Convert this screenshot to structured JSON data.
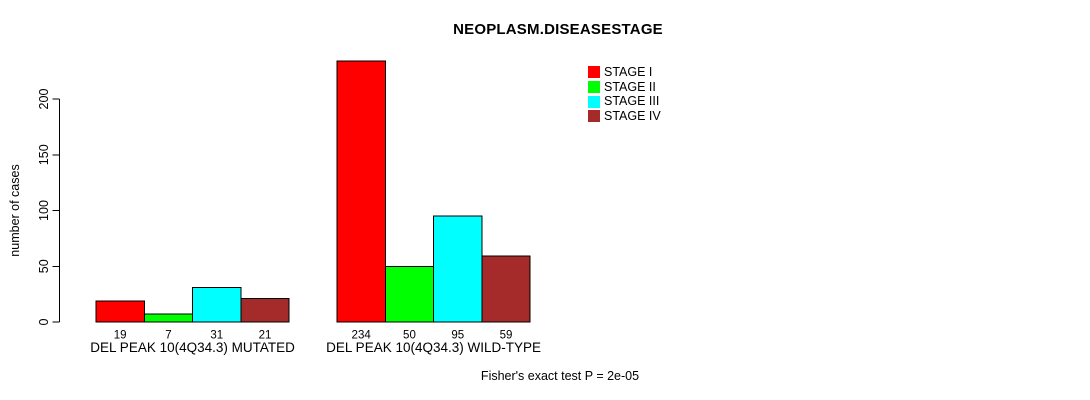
{
  "chart_data": {
    "type": "bar",
    "title": "NEOPLASM.DISEASESTAGE",
    "xlabel": "",
    "ylabel": "number of cases",
    "ylim": [
      0,
      200
    ],
    "yticks": [
      0,
      50,
      100,
      150,
      200
    ],
    "grid": false,
    "legend_position": "top-right",
    "bar_value_labels_shown": true,
    "categories": [
      "DEL PEAK 10(4Q34.3) MUTATED",
      "DEL PEAK 10(4Q34.3) WILD-TYPE"
    ],
    "series": [
      {
        "name": "STAGE I",
        "color": "#ff0000",
        "values": [
          19,
          234
        ]
      },
      {
        "name": "STAGE II",
        "color": "#00ff00",
        "values": [
          7,
          50
        ]
      },
      {
        "name": "STAGE III",
        "color": "#00ffff",
        "values": [
          31,
          95
        ]
      },
      {
        "name": "STAGE IV",
        "color": "#a52a2a",
        "values": [
          21,
          59
        ]
      }
    ],
    "annotation": "Fisher's exact test P = 2e-05"
  },
  "colors": {
    "axis": "#000000",
    "bar_border": "#000000",
    "background": "#ffffff"
  }
}
